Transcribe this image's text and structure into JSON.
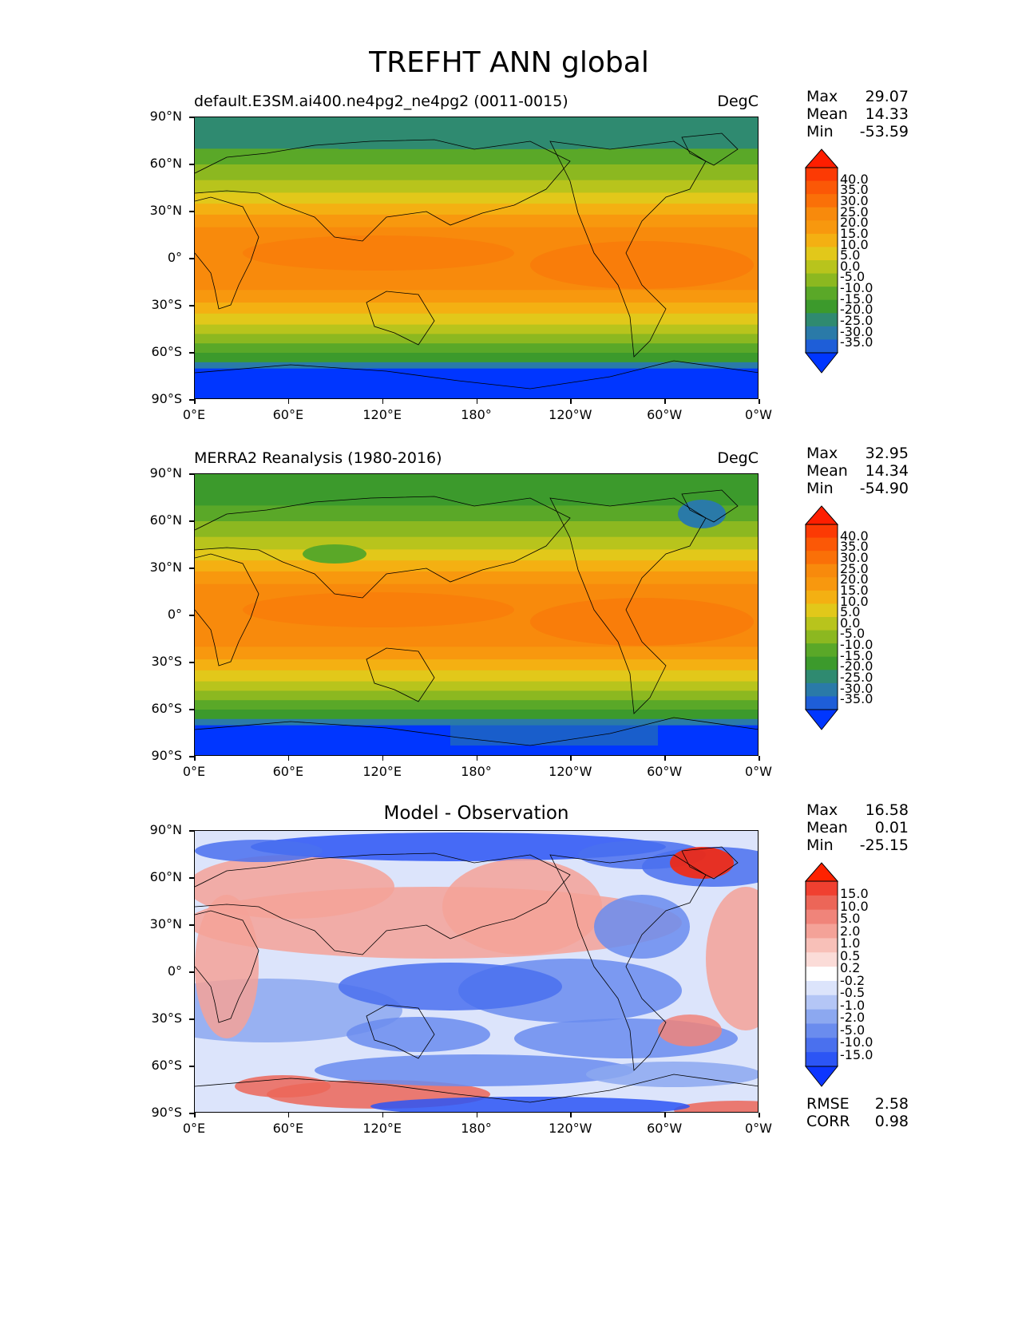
{
  "title": "TREFHT ANN global",
  "lat_labels": [
    "90°N",
    "60°N",
    "30°N",
    "0°",
    "30°S",
    "60°S",
    "90°S"
  ],
  "lon_labels": [
    "0°E",
    "60°E",
    "120°E",
    "180°",
    "120°W",
    "60°W",
    "0°W"
  ],
  "panels": [
    {
      "left_title": "default.E3SM.ai400.ne4pg2_ne4pg2 (0011-0015)",
      "right_title": "DegC",
      "stats": [
        {
          "k": "Max",
          "v": "29.07"
        },
        {
          "k": "Mean",
          "v": "14.33"
        },
        {
          "k": "Min",
          "v": "-53.59"
        }
      ],
      "colorbar_labels": [
        "40.0",
        "35.0",
        "30.0",
        "25.0",
        "20.0",
        "15.0",
        "10.0",
        "5.0",
        "0.0",
        "-5.0",
        "-10.0",
        "-15.0",
        "-20.0",
        "-25.0",
        "-30.0",
        "-35.0"
      ]
    },
    {
      "left_title": "MERRA2 Reanalysis (1980-2016)",
      "right_title": "DegC",
      "stats": [
        {
          "k": "Max",
          "v": "32.95"
        },
        {
          "k": "Mean",
          "v": "14.34"
        },
        {
          "k": "Min",
          "v": "-54.90"
        }
      ],
      "colorbar_labels": [
        "40.0",
        "35.0",
        "30.0",
        "25.0",
        "20.0",
        "15.0",
        "10.0",
        "5.0",
        "0.0",
        "-5.0",
        "-10.0",
        "-15.0",
        "-20.0",
        "-25.0",
        "-30.0",
        "-35.0"
      ]
    },
    {
      "center_title": "Model - Observation",
      "stats": [
        {
          "k": "Max",
          "v": "16.58"
        },
        {
          "k": "Mean",
          "v": "0.01"
        },
        {
          "k": "Min",
          "v": "-25.15"
        }
      ],
      "colorbar_labels": [
        "15.0",
        "10.0",
        "5.0",
        "2.0",
        "1.0",
        "0.5",
        "0.2",
        "-0.2",
        "-0.5",
        "-1.0",
        "-2.0",
        "-5.0",
        "-10.0",
        "-15.0"
      ],
      "extra_stats": [
        {
          "k": "RMSE",
          "v": "2.58"
        },
        {
          "k": "CORR",
          "v": "0.98"
        }
      ]
    }
  ],
  "colors": {
    "temp_scale": [
      "#0036ff",
      "#1e5ed8",
      "#2a7aa8",
      "#2f8a70",
      "#3c9a2c",
      "#5aa828",
      "#8cb820",
      "#b8c41c",
      "#e2c81a",
      "#f4b012",
      "#f8980e",
      "#f88a0c",
      "#fa7008",
      "#fb5806",
      "#fc3a04",
      "#fe1e00"
    ],
    "diff_scale": [
      "#0d36ff",
      "#2c55f5",
      "#4a70ee",
      "#6a8cee",
      "#8ca8f0",
      "#b4c6f6",
      "#dce4fb",
      "#ffffff",
      "#fbdcd8",
      "#f8c0b8",
      "#f4a298",
      "#f0847a",
      "#ec6658",
      "#f04030",
      "#fe2200"
    ]
  }
}
